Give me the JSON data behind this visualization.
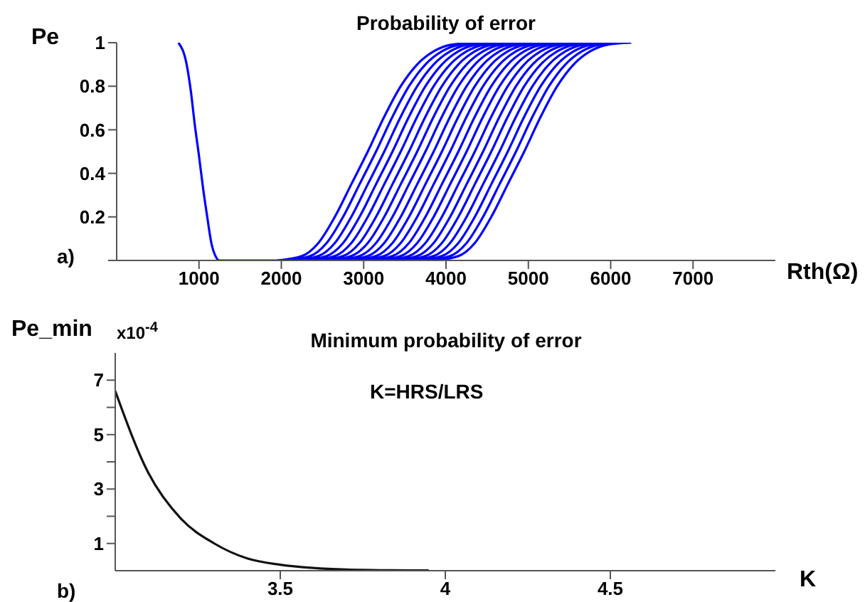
{
  "chart_data": [
    {
      "type": "line",
      "title": "Probability of error",
      "xlabel": "Rth(Ω)",
      "ylabel": "Pe",
      "annotations": [
        "a)"
      ],
      "xlim": [
        0,
        8000
      ],
      "ylim": [
        0,
        1
      ],
      "xticks": [
        1000,
        2000,
        3000,
        4000,
        5000,
        6000,
        7000
      ],
      "yticks": [
        {
          "value": 0,
          "label": null
        },
        0.2,
        0.4,
        0.6,
        0.8,
        1
      ],
      "series": [
        {
          "color": "#0000ff",
          "x": [
            750,
            850,
            900,
            950,
            1000,
            1050,
            1100,
            1150,
            1200,
            1250,
            2000
          ],
          "values": [
            1,
            0.9,
            0.78,
            0.62,
            0.48,
            0.33,
            0.2,
            0.08,
            0.02,
            0,
            0
          ]
        },
        {
          "color": "#0000ff",
          "x": [
            1950,
            2250,
            2450,
            2650,
            2850,
            3050,
            3250,
            3450,
            3650,
            3850,
            4050,
            4350
          ],
          "values": [
            0,
            0.02,
            0.08,
            0.2,
            0.35,
            0.5,
            0.66,
            0.8,
            0.9,
            0.96,
            0.99,
            1
          ]
        },
        {
          "color": "#0000ff",
          "x": [
            2050,
            2350,
            2550,
            2750,
            2950,
            3150,
            3350,
            3550,
            3750,
            3950,
            4150,
            4450
          ],
          "values": [
            0,
            0.02,
            0.08,
            0.2,
            0.35,
            0.5,
            0.66,
            0.8,
            0.9,
            0.96,
            0.99,
            1
          ]
        },
        {
          "color": "#0000ff",
          "x": [
            2150,
            2450,
            2650,
            2850,
            3050,
            3250,
            3450,
            3650,
            3850,
            4050,
            4250,
            4550
          ],
          "values": [
            0,
            0.02,
            0.08,
            0.2,
            0.35,
            0.5,
            0.66,
            0.8,
            0.9,
            0.96,
            0.99,
            1
          ]
        },
        {
          "color": "#0000ff",
          "x": [
            2250,
            2550,
            2750,
            2950,
            3150,
            3350,
            3550,
            3750,
            3950,
            4150,
            4350,
            4650
          ],
          "values": [
            0,
            0.02,
            0.08,
            0.2,
            0.35,
            0.5,
            0.66,
            0.8,
            0.9,
            0.96,
            0.99,
            1
          ]
        },
        {
          "color": "#0000ff",
          "x": [
            2350,
            2650,
            2850,
            3050,
            3250,
            3450,
            3650,
            3850,
            4050,
            4250,
            4450,
            4750
          ],
          "values": [
            0,
            0.02,
            0.08,
            0.2,
            0.35,
            0.5,
            0.66,
            0.8,
            0.9,
            0.96,
            0.99,
            1
          ]
        },
        {
          "color": "#0000ff",
          "x": [
            2450,
            2750,
            2950,
            3150,
            3350,
            3550,
            3750,
            3950,
            4150,
            4350,
            4550,
            4850
          ],
          "values": [
            0,
            0.02,
            0.08,
            0.2,
            0.35,
            0.5,
            0.66,
            0.8,
            0.9,
            0.96,
            0.99,
            1
          ]
        },
        {
          "color": "#0000ff",
          "x": [
            2550,
            2850,
            3050,
            3250,
            3450,
            3650,
            3850,
            4050,
            4250,
            4450,
            4650,
            4950
          ],
          "values": [
            0,
            0.02,
            0.08,
            0.2,
            0.35,
            0.5,
            0.66,
            0.8,
            0.9,
            0.96,
            0.99,
            1
          ]
        },
        {
          "color": "#0000ff",
          "x": [
            2650,
            2950,
            3150,
            3350,
            3550,
            3750,
            3950,
            4150,
            4350,
            4550,
            4750,
            5050
          ],
          "values": [
            0,
            0.02,
            0.08,
            0.2,
            0.35,
            0.5,
            0.66,
            0.8,
            0.9,
            0.96,
            0.99,
            1
          ]
        },
        {
          "color": "#0000ff",
          "x": [
            2750,
            3050,
            3250,
            3450,
            3650,
            3850,
            4050,
            4250,
            4450,
            4650,
            4850,
            5150
          ],
          "values": [
            0,
            0.02,
            0.08,
            0.2,
            0.35,
            0.5,
            0.66,
            0.8,
            0.9,
            0.96,
            0.99,
            1
          ]
        },
        {
          "color": "#0000ff",
          "x": [
            2850,
            3150,
            3350,
            3550,
            3750,
            3950,
            4150,
            4350,
            4550,
            4750,
            4950,
            5250
          ],
          "values": [
            0,
            0.02,
            0.08,
            0.2,
            0.35,
            0.5,
            0.66,
            0.8,
            0.9,
            0.96,
            0.99,
            1
          ]
        },
        {
          "color": "#0000ff",
          "x": [
            2950,
            3250,
            3450,
            3650,
            3850,
            4050,
            4250,
            4450,
            4650,
            4850,
            5050,
            5350
          ],
          "values": [
            0,
            0.02,
            0.08,
            0.2,
            0.35,
            0.5,
            0.66,
            0.8,
            0.9,
            0.96,
            0.99,
            1
          ]
        },
        {
          "color": "#0000ff",
          "x": [
            3050,
            3350,
            3550,
            3750,
            3950,
            4150,
            4350,
            4550,
            4750,
            4950,
            5150,
            5450
          ],
          "values": [
            0,
            0.02,
            0.08,
            0.2,
            0.35,
            0.5,
            0.66,
            0.8,
            0.9,
            0.96,
            0.99,
            1
          ]
        },
        {
          "color": "#0000ff",
          "x": [
            3150,
            3450,
            3650,
            3850,
            4050,
            4250,
            4450,
            4650,
            4850,
            5050,
            5250,
            5550
          ],
          "values": [
            0,
            0.02,
            0.08,
            0.2,
            0.35,
            0.5,
            0.66,
            0.8,
            0.9,
            0.96,
            0.99,
            1
          ]
        },
        {
          "color": "#0000ff",
          "x": [
            3250,
            3550,
            3750,
            3950,
            4150,
            4350,
            4550,
            4750,
            4950,
            5150,
            5350,
            5650
          ],
          "values": [
            0,
            0.02,
            0.08,
            0.2,
            0.35,
            0.5,
            0.66,
            0.8,
            0.9,
            0.96,
            0.99,
            1
          ]
        },
        {
          "color": "#0000ff",
          "x": [
            3350,
            3650,
            3850,
            4050,
            4250,
            4450,
            4650,
            4850,
            5050,
            5250,
            5450,
            5750
          ],
          "values": [
            0,
            0.02,
            0.08,
            0.2,
            0.35,
            0.5,
            0.66,
            0.8,
            0.9,
            0.96,
            0.99,
            1
          ]
        },
        {
          "color": "#0000ff",
          "x": [
            3450,
            3750,
            3950,
            4150,
            4350,
            4550,
            4750,
            4950,
            5150,
            5350,
            5550,
            5850
          ],
          "values": [
            0,
            0.02,
            0.08,
            0.2,
            0.35,
            0.5,
            0.66,
            0.8,
            0.9,
            0.96,
            0.99,
            1
          ]
        },
        {
          "color": "#0000ff",
          "x": [
            3550,
            3850,
            4050,
            4250,
            4450,
            4650,
            4850,
            5050,
            5250,
            5450,
            5650,
            5950
          ],
          "values": [
            0,
            0.02,
            0.08,
            0.2,
            0.35,
            0.5,
            0.66,
            0.8,
            0.9,
            0.96,
            0.99,
            1
          ]
        },
        {
          "color": "#0000ff",
          "x": [
            3650,
            3950,
            4150,
            4350,
            4550,
            4750,
            4950,
            5150,
            5350,
            5550,
            5750,
            6050
          ],
          "values": [
            0,
            0.02,
            0.08,
            0.2,
            0.35,
            0.5,
            0.66,
            0.8,
            0.9,
            0.96,
            0.99,
            1
          ]
        },
        {
          "color": "#0000ff",
          "x": [
            3750,
            4050,
            4250,
            4450,
            4650,
            4850,
            5050,
            5250,
            5450,
            5650,
            5850,
            6150
          ],
          "values": [
            0,
            0.02,
            0.08,
            0.2,
            0.35,
            0.5,
            0.66,
            0.8,
            0.9,
            0.96,
            0.99,
            1
          ]
        },
        {
          "color": "#0000ff",
          "x": [
            3850,
            4150,
            4350,
            4550,
            4750,
            4950,
            5150,
            5350,
            5550,
            5750,
            5950,
            6250
          ],
          "values": [
            0,
            0.02,
            0.08,
            0.2,
            0.35,
            0.5,
            0.66,
            0.8,
            0.9,
            0.96,
            0.99,
            1
          ]
        }
      ]
    },
    {
      "type": "line",
      "title": "Minimum probability of error",
      "xlabel": "K",
      "ylabel": "Pe_min",
      "annotations": [
        "x10$^{-4}$",
        "K=HRS/LRS",
        "b)"
      ],
      "xlim": [
        3,
        5
      ],
      "ylim": [
        0,
        8
      ],
      "xticks": [
        3.5,
        4,
        4.5
      ],
      "yticks": [
        1,
        {
          "value": 2,
          "label": null
        },
        3,
        {
          "value": 4,
          "label": null
        },
        5,
        {
          "value": 6,
          "label": null
        },
        7
      ],
      "color": "#111111",
      "x": [
        3.0,
        3.1,
        3.2,
        3.3,
        3.4,
        3.5,
        3.6,
        3.7,
        3.8,
        3.9,
        3.95
      ],
      "values": [
        6.6,
        3.6,
        1.9,
        1.0,
        0.45,
        0.22,
        0.1,
        0.04,
        0.02,
        0.01,
        0.01
      ]
    }
  ]
}
